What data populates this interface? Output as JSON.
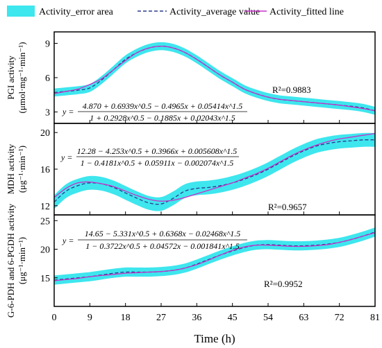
{
  "legend": {
    "error_area": "Activity_error area",
    "average": "Activity_average value",
    "fitted": "Activity_fitted line"
  },
  "colors": {
    "band": "#3ee6ee",
    "average": "#2b3a8c",
    "fitted": "#c830c8"
  },
  "x_axis": {
    "label": "Time (h)",
    "ticks": [
      0,
      9,
      18,
      27,
      36,
      45,
      54,
      63,
      72,
      81
    ],
    "range": [
      0,
      81
    ]
  },
  "chart_data": [
    {
      "type": "area",
      "ylabel": [
        "PGI activity",
        "(μmol·mg⁻¹·min⁻¹)"
      ],
      "ylim": [
        2,
        10
      ],
      "yticks": [
        3,
        6,
        9
      ],
      "r2": "R²=0.9883",
      "equation": {
        "num": "4.870 + 0.6939x^0.5 − 0.4965x + 0.05414x^1.5",
        "den": "1 + 0.2928x^0.5 − 0.1885x + 0.02043x^1.5"
      },
      "series": [
        {
          "name": "Activity_average value",
          "x": [
            0,
            3,
            6,
            9,
            12,
            15,
            18,
            21,
            24,
            27,
            30,
            33,
            36,
            39,
            42,
            45,
            48,
            51,
            54,
            57,
            60,
            63,
            66,
            69,
            72,
            75,
            78,
            81
          ],
          "y": [
            4.7,
            4.8,
            4.9,
            5.1,
            5.8,
            6.7,
            7.6,
            8.2,
            8.6,
            8.75,
            8.6,
            8.2,
            7.6,
            6.9,
            6.2,
            5.6,
            5.0,
            4.6,
            4.3,
            4.1,
            4.0,
            3.9,
            3.8,
            3.7,
            3.6,
            3.5,
            3.35,
            3.1
          ],
          "err": 0.35
        },
        {
          "name": "Activity_fitted line",
          "x": [
            0,
            3,
            6,
            9,
            12,
            15,
            18,
            21,
            24,
            27,
            30,
            33,
            36,
            39,
            42,
            45,
            48,
            51,
            54,
            57,
            60,
            63,
            66,
            69,
            72,
            75,
            78,
            81
          ],
          "y": [
            4.6,
            4.8,
            5.0,
            5.4,
            5.9,
            6.7,
            7.5,
            8.2,
            8.6,
            8.75,
            8.6,
            8.2,
            7.6,
            6.9,
            6.2,
            5.6,
            5.0,
            4.6,
            4.3,
            4.1,
            4.0,
            3.9,
            3.8,
            3.7,
            3.6,
            3.45,
            3.3,
            3.1
          ]
        }
      ]
    },
    {
      "type": "area",
      "ylabel": [
        "MDH activity",
        "(μg⁻¹·min⁻¹)"
      ],
      "ylim": [
        11,
        21
      ],
      "yticks": [
        12,
        16,
        20
      ],
      "r2": "R²=0.9657",
      "equation": {
        "num": "12.28 − 4.253x^0.5 + 0.3966x + 0.005608x^1.5",
        "den": "1 − 0.4181x^0.5 + 0.05911x − 0.002074x^1.5"
      },
      "series": [
        {
          "name": "Activity_average value",
          "x": [
            0,
            3,
            6,
            9,
            12,
            15,
            18,
            21,
            24,
            27,
            30,
            33,
            36,
            39,
            42,
            45,
            48,
            51,
            54,
            57,
            60,
            63,
            66,
            69,
            72,
            75,
            78,
            81
          ],
          "y": [
            12.4,
            13.6,
            14.2,
            14.5,
            14.4,
            14.0,
            13.4,
            12.8,
            12.3,
            12.2,
            12.8,
            13.6,
            13.9,
            14.0,
            14.2,
            14.5,
            14.9,
            15.4,
            16.0,
            16.7,
            17.4,
            18.0,
            18.5,
            18.8,
            19.0,
            19.1,
            19.2,
            19.2
          ],
          "err": 0.75
        },
        {
          "name": "Activity_fitted line",
          "x": [
            0,
            3,
            6,
            9,
            12,
            15,
            18,
            21,
            24,
            27,
            30,
            33,
            36,
            39,
            42,
            45,
            48,
            51,
            54,
            57,
            60,
            63,
            66,
            69,
            72,
            75,
            78,
            81
          ],
          "y": [
            12.9,
            13.9,
            14.5,
            14.6,
            14.4,
            14.1,
            13.6,
            13.1,
            12.7,
            12.5,
            12.6,
            12.9,
            13.3,
            13.7,
            14.1,
            14.5,
            15.0,
            15.5,
            16.1,
            16.8,
            17.5,
            18.1,
            18.6,
            19.0,
            19.3,
            19.5,
            19.7,
            19.9
          ]
        }
      ]
    },
    {
      "type": "area",
      "ylabel": [
        "G-6-PDH and 6-PGDH activity",
        "(μg⁻¹·min⁻¹)"
      ],
      "ylim": [
        10,
        26
      ],
      "yticks": [
        15,
        20,
        25
      ],
      "r2": "R²=0.9952",
      "equation": {
        "num": "14.65 − 5.331x^0.5 + 0.6368x − 0.02468x^1.5",
        "den": "1 − 0.3722x^0.5 + 0.04572x − 0.001841x^1.5"
      },
      "series": [
        {
          "name": "Activity_average value",
          "x": [
            0,
            3,
            6,
            9,
            12,
            15,
            18,
            21,
            24,
            27,
            30,
            33,
            36,
            39,
            42,
            45,
            48,
            51,
            54,
            57,
            60,
            63,
            66,
            69,
            72,
            75,
            78,
            81
          ],
          "y": [
            14.6,
            14.8,
            15.0,
            15.2,
            15.5,
            15.8,
            16.0,
            16.0,
            16.0,
            16.1,
            16.3,
            16.7,
            17.4,
            18.2,
            19.0,
            19.7,
            20.3,
            20.7,
            20.8,
            20.7,
            20.6,
            20.6,
            20.7,
            20.9,
            21.2,
            21.7,
            22.3,
            23.0
          ],
          "err": 0.8
        },
        {
          "name": "Activity_fitted line",
          "x": [
            0,
            3,
            6,
            9,
            12,
            15,
            18,
            21,
            24,
            27,
            30,
            33,
            36,
            39,
            42,
            45,
            48,
            51,
            54,
            57,
            60,
            63,
            66,
            69,
            72,
            75,
            78,
            81
          ],
          "y": [
            14.5,
            14.7,
            14.9,
            15.2,
            15.4,
            15.6,
            15.8,
            15.9,
            16.0,
            16.1,
            16.3,
            16.7,
            17.3,
            18.1,
            19.0,
            19.8,
            20.4,
            20.7,
            20.7,
            20.6,
            20.5,
            20.5,
            20.6,
            20.8,
            21.2,
            21.7,
            22.3,
            22.9
          ]
        }
      ]
    }
  ]
}
